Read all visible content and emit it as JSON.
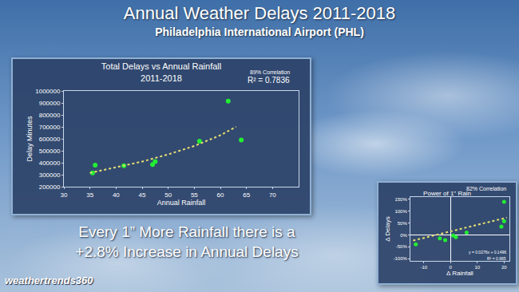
{
  "header": {
    "title": "Annual Weather Delays 2011-2018",
    "subtitle": "Philadelphia International Airport (PHL)"
  },
  "caption": [
    "Every 1” More Rainfall there is a",
    "+2.8% Increase in Annual Delays"
  ],
  "logo": "weathertrends360",
  "chart_data": [
    {
      "type": "scatter",
      "title": "Total Delays vs Annual Rainfall",
      "subtitle": "2011-2018",
      "x_label": "Annual Rainfall",
      "y_label": "Delay Minutes",
      "annotations": [
        "89% Correlation",
        "R² = 0.7836"
      ],
      "series": [
        {
          "type": "scatter",
          "color": "#22ee33",
          "marker": "circle",
          "x": [
            35.5,
            36,
            41.5,
            47,
            47.5,
            56,
            61.5,
            64
          ],
          "values": [
            315000,
            380000,
            375000,
            385000,
            410000,
            580000,
            915000,
            590000
          ]
        },
        {
          "type": "line",
          "color": "#e8e070",
          "line_style": "dotted",
          "x": [
            35,
            40,
            45,
            50,
            55,
            60,
            63
          ],
          "values": [
            315000,
            360000,
            410000,
            470000,
            540000,
            630000,
            700000
          ]
        }
      ],
      "xlim": [
        30,
        75
      ],
      "xticks": [
        30,
        35,
        40,
        45,
        50,
        55,
        60,
        65,
        70
      ],
      "ylim": [
        200000,
        1000000
      ],
      "yticks": [
        200000,
        300000,
        400000,
        500000,
        600000,
        700000,
        800000,
        900000,
        1000000
      ],
      "grid": false
    },
    {
      "type": "scatter",
      "title": "Power of 1\" Rain",
      "x_label": "Δ Rainfall",
      "y_label": "Δ Delays",
      "annotations": [
        "82% Correlation",
        "y = 0.0276x + 0.1496",
        "R² = 0.665"
      ],
      "series": [
        {
          "type": "scatter",
          "color": "#22ee33",
          "marker": "circle",
          "x": [
            -13,
            -4,
            -2,
            1,
            2,
            6,
            19,
            20,
            20
          ],
          "values": [
            -40,
            -15,
            -22,
            -3,
            -10,
            10,
            35,
            58,
            140
          ]
        },
        {
          "type": "line",
          "color": "#e8e070",
          "line_style": "dotted",
          "x": [
            -14,
            21
          ],
          "values": [
            -24,
            73
          ]
        }
      ],
      "xlim": [
        -15,
        22
      ],
      "xticks": [
        -10,
        0,
        10,
        20
      ],
      "ylim": [
        -110,
        160
      ],
      "yticks": [
        {
          "value": -100,
          "label": "-100%"
        },
        {
          "value": -50,
          "label": "-50%"
        },
        {
          "value": 0,
          "label": "0%"
        },
        {
          "value": 50,
          "label": "50%"
        },
        {
          "value": 100,
          "label": "100%"
        },
        {
          "value": 150,
          "label": "150%"
        }
      ],
      "grid": false
    }
  ]
}
